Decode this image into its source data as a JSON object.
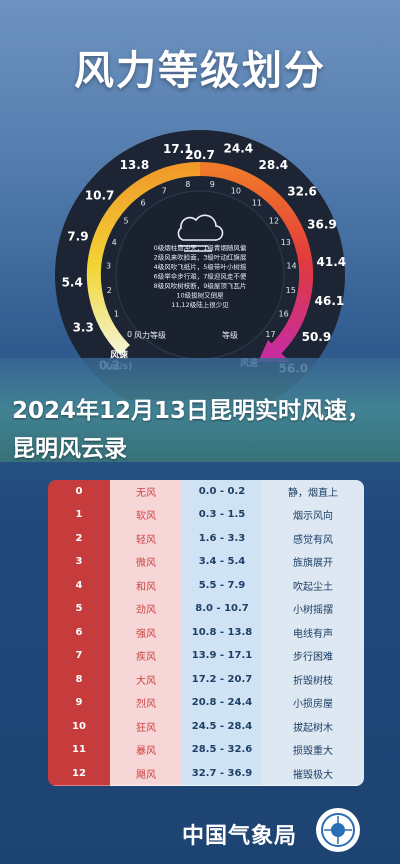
{
  "title": "风力等级划分",
  "gauge": {
    "left_labels": [
      "0.2",
      "3.3",
      "5.4",
      "7.9",
      "10.7",
      "13.8",
      "17.1"
    ],
    "right_labels": [
      "20.7",
      "24.4",
      "28.4",
      "32.6",
      "36.9",
      "41.4",
      "46.1",
      "50.9",
      "56.0"
    ],
    "left_unit": "风速\n(m/s)",
    "right_unit": "风速",
    "inner_left_label": "风力等级",
    "inner_right_label": "等级",
    "inner_numbers": [
      "0",
      "1",
      "2",
      "3",
      "4",
      "5",
      "6",
      "7",
      "8",
      "9",
      "10",
      "11",
      "12",
      "13",
      "14",
      "15",
      "16",
      "17"
    ],
    "inner_lines": [
      "0级烟柱直冲天，1级青烟随风偏",
      "2级风来吹脸面，3级叶动红旗展",
      "4级风吹飞纸片，5级带叶小树摇",
      "6级举伞步行艰，7级迎风走不便",
      "8级风吹树枝断，9级屋顶飞瓦片",
      "10级拔树又倒屋",
      "11,12级陆上很少见"
    ]
  },
  "headline": "2024年12月13日昆明实时风速，昆明风云录",
  "table": {
    "rows": [
      {
        "level": "0",
        "name": "无风",
        "speed": "0.0 - 0.2",
        "desc": "静，烟直上"
      },
      {
        "level": "1",
        "name": "软风",
        "speed": "0.3 - 1.5",
        "desc": "烟示风向"
      },
      {
        "level": "2",
        "name": "轻风",
        "speed": "1.6 - 3.3",
        "desc": "感觉有风"
      },
      {
        "level": "3",
        "name": "微风",
        "speed": "3.4 - 5.4",
        "desc": "旌旗展开"
      },
      {
        "level": "4",
        "name": "和风",
        "speed": "5.5 - 7.9",
        "desc": "吹起尘土"
      },
      {
        "level": "5",
        "name": "劲风",
        "speed": "8.0 - 10.7",
        "desc": "小树摇摆"
      },
      {
        "level": "6",
        "name": "强风",
        "speed": "10.8 - 13.8",
        "desc": "电线有声"
      },
      {
        "level": "7",
        "name": "疾风",
        "speed": "13.9 - 17.1",
        "desc": "步行困难"
      },
      {
        "level": "8",
        "name": "大风",
        "speed": "17.2 - 20.7",
        "desc": "折毁树枝"
      },
      {
        "level": "9",
        "name": "烈风",
        "speed": "20.8 - 24.4",
        "desc": "小损房屋"
      },
      {
        "level": "10",
        "name": "狂风",
        "speed": "24.5 - 28.4",
        "desc": "拔起树木"
      },
      {
        "level": "11",
        "name": "暴风",
        "speed": "28.5 - 32.6",
        "desc": "损毁重大"
      },
      {
        "level": "12",
        "name": "飓风",
        "speed": "32.7 - 36.9",
        "desc": "摧毁极大"
      }
    ]
  },
  "footer": {
    "org": "中国气象局"
  },
  "colors": {
    "bg_top": "#6e93c0",
    "bg_bottom": "#1d4372",
    "gauge_dark": "#1d2433",
    "table_level": "#c63c3c",
    "table_name": "#f6d6d6",
    "table_speed": "#cfe3f4",
    "table_desc": "#dde8f3"
  }
}
